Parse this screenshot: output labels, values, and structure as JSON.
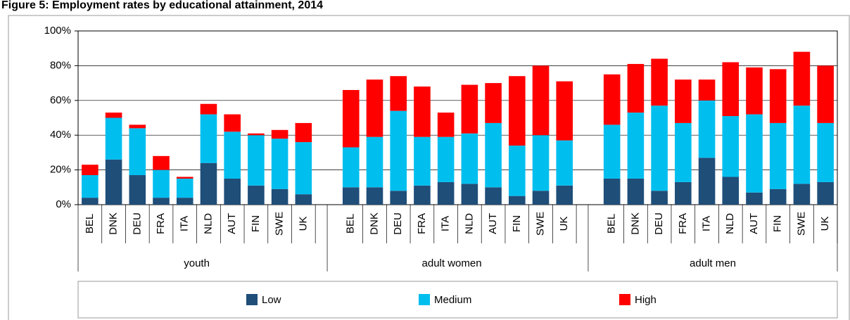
{
  "chart_data": {
    "type": "bar",
    "stacked": true,
    "title": "Figure 5: Employment rates by educational attainment, 2014",
    "groups": [
      "youth",
      "adult women",
      "adult men"
    ],
    "categories": [
      "BEL",
      "DNK",
      "DEU",
      "FRA",
      "ITA",
      "NLD",
      "AUT",
      "FIN",
      "SWE",
      "UK",
      "BEL",
      "DNK",
      "DEU",
      "FRA",
      "ITA",
      "NLD",
      "AUT",
      "FIN",
      "SWE",
      "UK",
      "BEL",
      "DNK",
      "DEU",
      "FRA",
      "ITA",
      "NLD",
      "AUT",
      "FIN",
      "SWE",
      "UK"
    ],
    "series": [
      {
        "name": "Low",
        "color": "#1f4e79",
        "values": [
          4,
          26,
          17,
          4,
          4,
          24,
          15,
          11,
          9,
          6,
          10,
          10,
          8,
          11,
          13,
          12,
          10,
          5,
          8,
          11,
          15,
          15,
          8,
          13,
          27,
          16,
          7,
          9,
          12,
          13
        ]
      },
      {
        "name": "Medium",
        "color": "#00bfef",
        "values": [
          13,
          24,
          27,
          16,
          11,
          28,
          27,
          29,
          29,
          30,
          23,
          29,
          46,
          28,
          26,
          29,
          37,
          29,
          32,
          26,
          31,
          38,
          49,
          34,
          33,
          35,
          45,
          38,
          45,
          34
        ]
      },
      {
        "name": "High",
        "color": "#ff0000",
        "values": [
          6,
          3,
          2,
          8,
          1,
          6,
          10,
          1,
          5,
          11,
          33,
          33,
          20,
          29,
          14,
          28,
          23,
          40,
          40,
          34,
          29,
          28,
          27,
          25,
          12,
          31,
          27,
          31,
          31,
          33
        ]
      }
    ],
    "ylim": [
      0,
      100
    ],
    "yticks": [
      {
        "value": 0,
        "label": "0%"
      },
      {
        "value": 20,
        "label": "20%"
      },
      {
        "value": 40,
        "label": "40%"
      },
      {
        "value": 60,
        "label": "60%"
      },
      {
        "value": 80,
        "label": "80%"
      },
      {
        "value": 100,
        "label": "100%"
      }
    ],
    "grid": true
  }
}
